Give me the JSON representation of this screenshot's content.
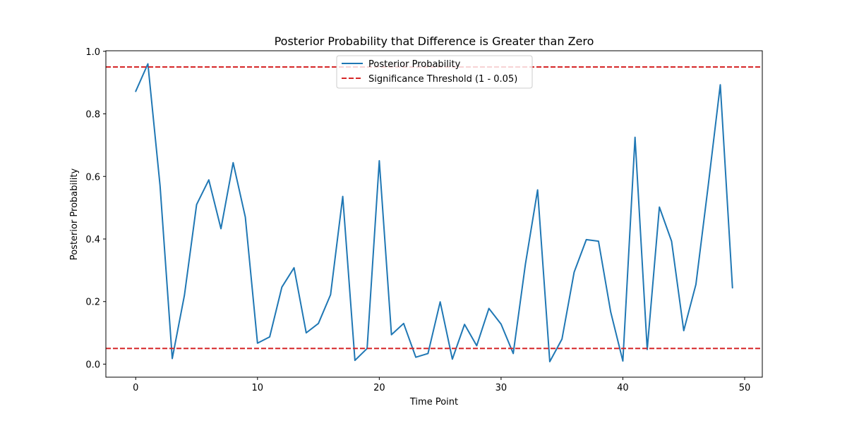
{
  "chart_data": {
    "type": "line",
    "title": "Posterior Probability that Difference is Greater than Zero",
    "xlabel": "Time Point",
    "ylabel": "Posterior Probability",
    "xlim": [
      -2.45,
      51.45
    ],
    "ylim": [
      -0.0417,
      1.0017
    ],
    "xticks": [
      0,
      10,
      20,
      30,
      40,
      50
    ],
    "yticks": [
      0.0,
      0.2,
      0.4,
      0.6,
      0.8,
      1.0
    ],
    "xtick_labels": [
      "0",
      "10",
      "20",
      "30",
      "40",
      "50"
    ],
    "ytick_labels": [
      "0.0",
      "0.2",
      "0.4",
      "0.6",
      "0.8",
      "1.0"
    ],
    "grid": false,
    "legend_position": "upper center",
    "series": [
      {
        "name": "Posterior Probability",
        "color": "#1f77b4",
        "style": "solid",
        "x": [
          0,
          1,
          2,
          3,
          4,
          5,
          6,
          7,
          8,
          9,
          10,
          11,
          12,
          13,
          14,
          15,
          16,
          17,
          18,
          19,
          20,
          21,
          22,
          23,
          24,
          25,
          26,
          27,
          28,
          29,
          30,
          31,
          32,
          33,
          34,
          35,
          36,
          37,
          38,
          39,
          40,
          41,
          42,
          43,
          44,
          45,
          46,
          47,
          48,
          49
        ],
        "values": [
          0.872,
          0.96,
          0.57,
          0.018,
          0.22,
          0.51,
          0.589,
          0.433,
          0.644,
          0.47,
          0.067,
          0.087,
          0.246,
          0.308,
          0.1,
          0.13,
          0.222,
          0.536,
          0.012,
          0.05,
          0.65,
          0.094,
          0.13,
          0.022,
          0.034,
          0.199,
          0.016,
          0.127,
          0.059,
          0.178,
          0.128,
          0.034,
          0.32,
          0.557,
          0.008,
          0.08,
          0.294,
          0.398,
          0.393,
          0.167,
          0.01,
          0.725,
          0.047,
          0.502,
          0.393,
          0.107,
          0.255,
          0.568,
          0.893,
          0.244
        ]
      }
    ],
    "reference_lines": [
      {
        "name": "Significance Threshold (1 - 0.05)",
        "y": 0.95,
        "color": "#d62728",
        "style": "dashed"
      },
      {
        "y": 0.05,
        "color": "#d62728",
        "style": "dashed"
      }
    ]
  }
}
